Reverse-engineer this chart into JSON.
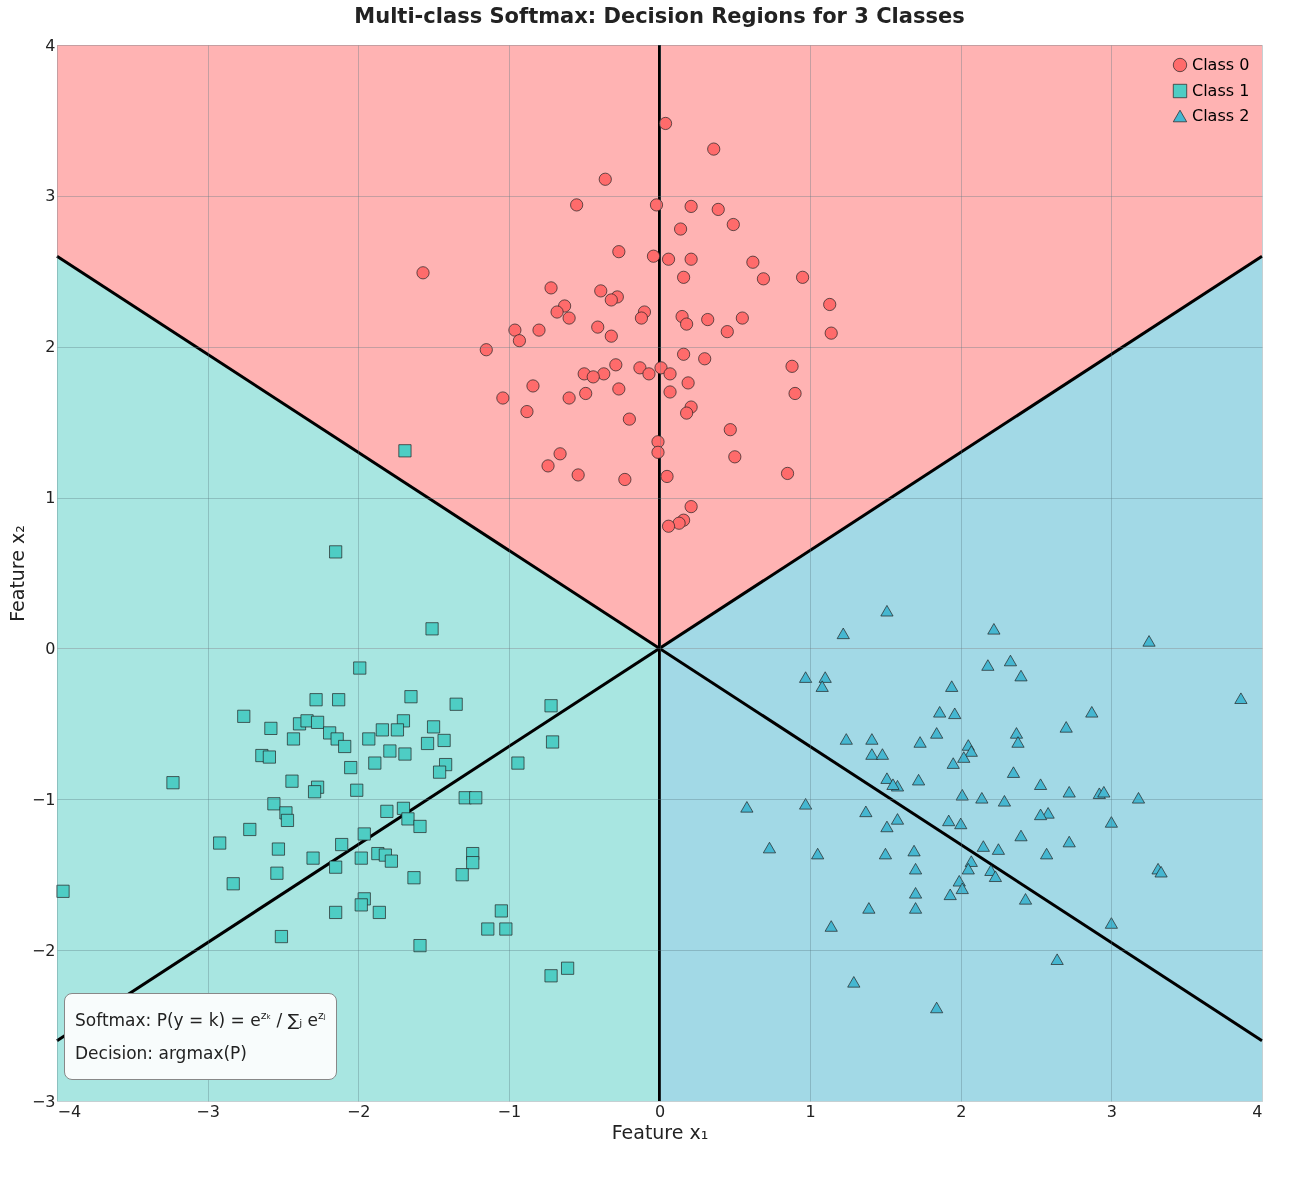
{
  "chart_data": {
    "type": "scatter",
    "title": "Multi-class Softmax: Decision Regions for 3 Classes",
    "xlabel": "Feature x₁",
    "ylabel": "Feature x₂",
    "xlim": [
      -4,
      4
    ],
    "ylim": [
      -3,
      4
    ],
    "xticks": [
      -4,
      -3,
      -2,
      -1,
      0,
      1,
      2,
      3,
      4
    ],
    "yticks": [
      -3,
      -2,
      -1,
      0,
      1,
      2,
      3,
      4
    ],
    "grid": true,
    "legend": "top right",
    "annotations": [
      "Softmax: P(y = k) = e$^{zₖ}$ / ∑ⱼ e$^{zⱼ}$",
      "Decision: argmax(P)"
    ],
    "series": [
      {
        "type": "area",
        "color": "#ffb3b3",
        "x": [
          -4,
          -3,
          -2,
          -1,
          0,
          1,
          2,
          3,
          4
        ],
        "values": [
          4,
          4,
          4,
          4,
          4,
          4,
          4,
          4,
          4
        ]
      },
      {
        "type": "area",
        "color": "#a8e6e1",
        "x": [
          -4,
          -3,
          -2,
          -1,
          0
        ],
        "values": [
          2.6,
          1.95,
          1.3,
          0.65,
          0
        ]
      },
      {
        "type": "area",
        "color": "#a8e6e1",
        "x": [
          -4,
          0
        ],
        "values": [
          -3,
          -3
        ]
      },
      {
        "type": "area",
        "color": "#a2d9e6",
        "x": [
          0,
          1,
          2,
          3,
          4
        ],
        "values": [
          0,
          0.65,
          1.3,
          1.95,
          2.6
        ]
      },
      {
        "type": "area",
        "color": "#a2d9e6",
        "x": [
          0,
          4
        ],
        "values": [
          -3,
          -3
        ]
      },
      {
        "type": "line",
        "color": "#000000",
        "x": [
          0,
          0
        ],
        "values": [
          -3,
          4
        ]
      },
      {
        "type": "line",
        "color": "#000000",
        "x": [
          -4,
          4
        ],
        "values": [
          2.6,
          -2.6
        ]
      },
      {
        "type": "line",
        "color": "#000000",
        "x": [
          -4,
          4
        ],
        "values": [
          -2.6,
          2.6
        ]
      },
      {
        "name": "Class 0",
        "color": "#ff6b6b",
        "marker": "circle",
        "x": [
          0.04,
          0.36,
          -0.36,
          -0.55,
          -0.02,
          0.21,
          0.39,
          0.49,
          0.14,
          -0.27,
          -0.04,
          0.06,
          0.21,
          0.62,
          0.69,
          0.95,
          -1.57,
          0.16,
          -0.72,
          -0.39,
          -0.28,
          -0.32,
          -0.63,
          1.13,
          -0.68,
          -0.6,
          -0.1,
          -0.12,
          0.15,
          0.18,
          0.32,
          0.55,
          1.14,
          -0.96,
          -0.41,
          -0.8,
          -0.93,
          -0.32,
          0.45,
          -1.15,
          0.16,
          0.3,
          0.88,
          -0.29,
          -0.13,
          0.01,
          -0.5,
          -0.37,
          -0.44,
          -0.07,
          0.07,
          -0.84,
          -0.49,
          -0.27,
          0.19,
          -0.6,
          -1.04,
          0.07,
          0.9,
          0.21,
          0.18,
          -0.88,
          -0.2,
          0.47,
          -0.01,
          -0.01,
          -0.66,
          -0.74,
          -0.54,
          -0.23,
          0.05,
          0.5,
          0.85,
          0.21,
          0.16,
          0.13,
          0.06
        ],
        "values": [
          3.48,
          3.31,
          3.11,
          2.94,
          2.94,
          2.93,
          2.91,
          2.81,
          2.78,
          2.63,
          2.6,
          2.58,
          2.58,
          2.56,
          2.45,
          2.46,
          2.49,
          2.46,
          2.39,
          2.37,
          2.33,
          2.31,
          2.27,
          2.28,
          2.23,
          2.19,
          2.23,
          2.19,
          2.2,
          2.15,
          2.18,
          2.19,
          2.09,
          2.11,
          2.13,
          2.11,
          2.04,
          2.07,
          2.1,
          1.98,
          1.95,
          1.92,
          1.87,
          1.88,
          1.86,
          1.86,
          1.82,
          1.82,
          1.8,
          1.82,
          1.82,
          1.74,
          1.69,
          1.72,
          1.76,
          1.66,
          1.66,
          1.7,
          1.69,
          1.6,
          1.56,
          1.57,
          1.52,
          1.45,
          1.37,
          1.3,
          1.29,
          1.21,
          1.15,
          1.12,
          1.14,
          1.27,
          1.16,
          0.94,
          0.85,
          0.83,
          0.81
        ]
      },
      {
        "name": "Class 1",
        "color": "#4ecdc4",
        "marker": "square",
        "x": [
          -1.69,
          -2.15,
          -1.51,
          -1.99,
          -1.65,
          -2.76,
          -2.28,
          -2.13,
          -2.58,
          -2.39,
          -2.34,
          -2.27,
          -2.19,
          -2.14,
          -2.09,
          -1.35,
          -1.93,
          -1.84,
          -1.7,
          -1.74,
          -1.5,
          -1.43,
          -1.54,
          -2.43,
          -2.64,
          -2.59,
          -1.69,
          -1.79,
          -1.42,
          -2.05,
          -1.89,
          -1.46,
          -3.23,
          -2.44,
          -2.27,
          -2.29,
          -2.01,
          -0.94,
          -0.72,
          -0.71,
          -1.29,
          -1.22,
          -1.7,
          -2.56,
          -2.48,
          -2.47,
          -1.81,
          -1.67,
          -1.59,
          -2.72,
          -1.96,
          -2.92,
          -2.53,
          -2.11,
          -1.87,
          -1.82,
          -1.78,
          -1.98,
          -2.3,
          -1.24,
          -1.24,
          -1.31,
          -1.63,
          -2.15,
          -2.54,
          -2.83,
          -3.96,
          -1.96,
          -1.98,
          -2.15,
          -1.86,
          -1.05,
          -1.14,
          -1.02,
          -2.51,
          -1.59,
          -0.61,
          -0.72
        ],
        "values": [
          1.31,
          0.64,
          0.13,
          -0.13,
          -0.32,
          -0.45,
          -0.34,
          -0.34,
          -0.53,
          -0.5,
          -0.48,
          -0.49,
          -0.56,
          -0.6,
          -0.65,
          -0.37,
          -0.6,
          -0.54,
          -0.48,
          -0.54,
          -0.52,
          -0.61,
          -0.63,
          -0.6,
          -0.71,
          -0.72,
          -0.7,
          -0.68,
          -0.77,
          -0.79,
          -0.76,
          -0.82,
          -0.89,
          -0.88,
          -0.92,
          -0.95,
          -0.94,
          -0.76,
          -0.38,
          -0.62,
          -0.99,
          -0.99,
          -1.06,
          -1.03,
          -1.09,
          -1.14,
          -1.08,
          -1.13,
          -1.18,
          -1.2,
          -1.23,
          -1.29,
          -1.33,
          -1.3,
          -1.36,
          -1.37,
          -1.41,
          -1.39,
          -1.39,
          -1.36,
          -1.42,
          -1.5,
          -1.52,
          -1.45,
          -1.49,
          -1.56,
          -1.61,
          -1.66,
          -1.7,
          -1.75,
          -1.75,
          -1.74,
          -1.86,
          -1.86,
          -1.91,
          -1.97,
          -2.12,
          -2.17
        ]
      },
      {
        "name": "Class 2",
        "color": "#45b7d1",
        "marker": "triangle",
        "x": [
          1.51,
          1.22,
          2.22,
          3.25,
          2.33,
          2.18,
          2.4,
          0.97,
          1.1,
          1.08,
          1.94,
          3.86,
          1.86,
          1.96,
          2.87,
          2.7,
          1.24,
          1.41,
          2.37,
          2.38,
          1.73,
          1.84,
          2.05,
          2.07,
          1.41,
          1.48,
          2.02,
          1.95,
          2.35,
          1.51,
          1.72,
          1.58,
          1.55,
          2.53,
          2.01,
          2.72,
          2.92,
          2.95,
          3.18,
          0.97,
          2.14,
          2.29,
          2.58,
          2.53,
          3.0,
          0.58,
          1.37,
          2.0,
          1.51,
          1.58,
          2.4,
          1.92,
          2.72,
          2.15,
          2.25,
          1.69,
          1.5,
          1.05,
          2.57,
          0.73,
          2.07,
          2.05,
          2.2,
          2.23,
          3.31,
          3.33,
          1.7,
          1.99,
          2.01,
          1.93,
          1.7,
          1.7,
          1.39,
          2.43,
          1.14,
          3.0,
          2.64,
          1.29,
          1.84
        ],
        "values": [
          0.25,
          0.1,
          0.13,
          0.05,
          -0.08,
          -0.11,
          -0.18,
          -0.19,
          -0.19,
          -0.25,
          -0.25,
          -0.33,
          -0.42,
          -0.43,
          -0.42,
          -0.52,
          -0.6,
          -0.6,
          -0.56,
          -0.62,
          -0.62,
          -0.56,
          -0.64,
          -0.68,
          -0.7,
          -0.7,
          -0.72,
          -0.76,
          -0.82,
          -0.86,
          -0.87,
          -0.91,
          -0.9,
          -0.9,
          -0.97,
          -0.95,
          -0.96,
          -0.95,
          -0.99,
          -1.03,
          -0.99,
          -1.01,
          -1.09,
          -1.1,
          -1.15,
          -1.05,
          -1.08,
          -1.16,
          -1.18,
          -1.13,
          -1.24,
          -1.14,
          -1.28,
          -1.31,
          -1.33,
          -1.34,
          -1.36,
          -1.36,
          -1.36,
          -1.32,
          -1.41,
          -1.46,
          -1.47,
          -1.51,
          -1.46,
          -1.48,
          -1.46,
          -1.54,
          -1.59,
          -1.63,
          -1.62,
          -1.72,
          -1.72,
          -1.66,
          -1.84,
          -1.82,
          -2.06,
          -2.21,
          -2.38
        ]
      }
    ]
  }
}
